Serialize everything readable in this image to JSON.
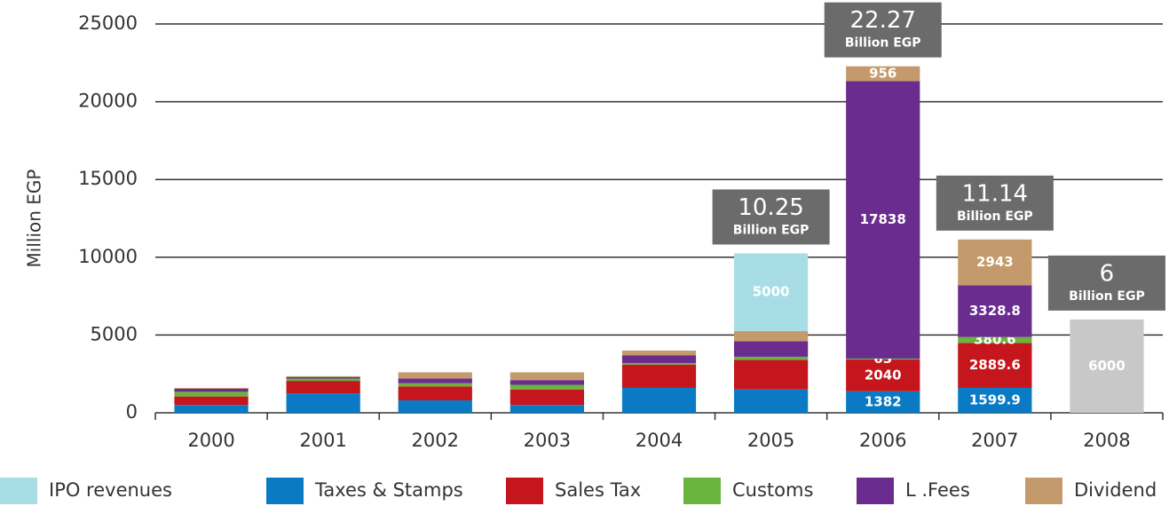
{
  "chart_data": {
    "type": "bar",
    "stacked": true,
    "y_label": "Million EGP",
    "categories": [
      "2000",
      "2001",
      "2002",
      "2003",
      "2004",
      "2005",
      "2006",
      "2007",
      "2008"
    ],
    "series": [
      {
        "name": "IPO revenues",
        "color": "#a8dde6",
        "values": [
          null,
          null,
          null,
          null,
          null,
          5000,
          null,
          null,
          null
        ],
        "value_labels": [
          null,
          null,
          null,
          null,
          null,
          "5000",
          null,
          null,
          null
        ]
      },
      {
        "name": "Taxes & Stamps",
        "color": "#0a7ac4",
        "values": [
          500,
          1250,
          800,
          500,
          1600,
          1500,
          1382,
          1599.9,
          null
        ],
        "value_labels": [
          null,
          null,
          null,
          null,
          null,
          null,
          "1382",
          "1599.9",
          null
        ]
      },
      {
        "name": "Sales Tax",
        "color": "#c4161c",
        "values": [
          550,
          800,
          900,
          1000,
          1500,
          1900,
          2040,
          2889.6,
          null
        ],
        "value_labels": [
          null,
          null,
          null,
          null,
          null,
          null,
          "2040",
          "2889.6",
          null
        ]
      },
      {
        "name": "Customs",
        "color": "#6ab43e",
        "values": [
          300,
          150,
          200,
          300,
          100,
          200,
          63,
          380.6,
          null
        ],
        "value_labels": [
          null,
          null,
          null,
          null,
          null,
          null,
          "63",
          "380.6",
          null
        ]
      },
      {
        "name": "L .Fees",
        "color": "#6a2c8e",
        "values": [
          200,
          100,
          300,
          300,
          500,
          1000,
          17838,
          3328.8,
          null
        ],
        "value_labels": [
          null,
          null,
          null,
          null,
          null,
          null,
          "17838",
          "3328.8",
          null
        ]
      },
      {
        "name": "Dividend",
        "color": "#c49a6c",
        "values": [
          50,
          50,
          400,
          500,
          300,
          650,
          956,
          2943,
          null
        ],
        "value_labels": [
          null,
          null,
          null,
          null,
          null,
          null,
          "956",
          "2943",
          null
        ]
      },
      {
        "color": "#c8c8c8",
        "values": [
          null,
          null,
          null,
          null,
          null,
          null,
          null,
          null,
          6000
        ],
        "value_labels": [
          null,
          null,
          null,
          null,
          null,
          null,
          null,
          null,
          "6000"
        ]
      }
    ],
    "annotations": [
      {
        "x": "2005",
        "text": "10.25",
        "subtext": "Billion EGP"
      },
      {
        "x": "2006",
        "text": "22.27",
        "subtext": "Billion EGP"
      },
      {
        "x": "2007",
        "text": "11.14",
        "subtext": "Billion EGP"
      },
      {
        "x": "2008",
        "text": "6",
        "subtext": "Billion EGP"
      }
    ],
    "ylim": [
      0,
      25000
    ],
    "yticks": [
      0,
      5000,
      10000,
      15000,
      20000,
      25000
    ],
    "grid": true
  }
}
